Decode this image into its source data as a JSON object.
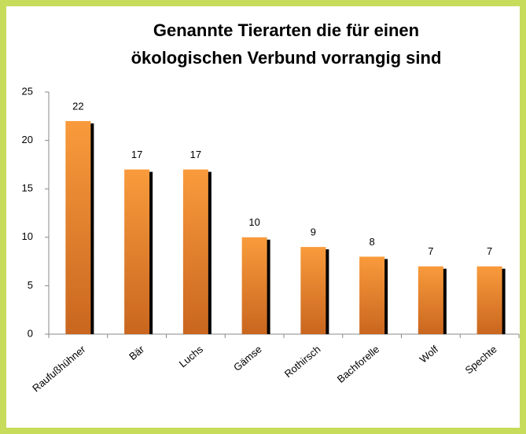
{
  "chart_data": {
    "type": "bar",
    "title": [
      "Genannte Tierarten die für einen",
      "ökologischen Verbund  vorrangig sind"
    ],
    "categories": [
      "Raufußhühner",
      "Bär",
      "Luchs",
      "Gämse",
      "Rothirsch",
      "Bachforelle",
      "Wolf",
      "Spechte"
    ],
    "values": [
      22,
      17,
      17,
      10,
      9,
      8,
      7,
      7
    ],
    "color": "#f28a2e",
    "ylim": [
      0,
      25
    ],
    "yticks": [
      0,
      5,
      10,
      15,
      20,
      25
    ],
    "grid": false
  }
}
